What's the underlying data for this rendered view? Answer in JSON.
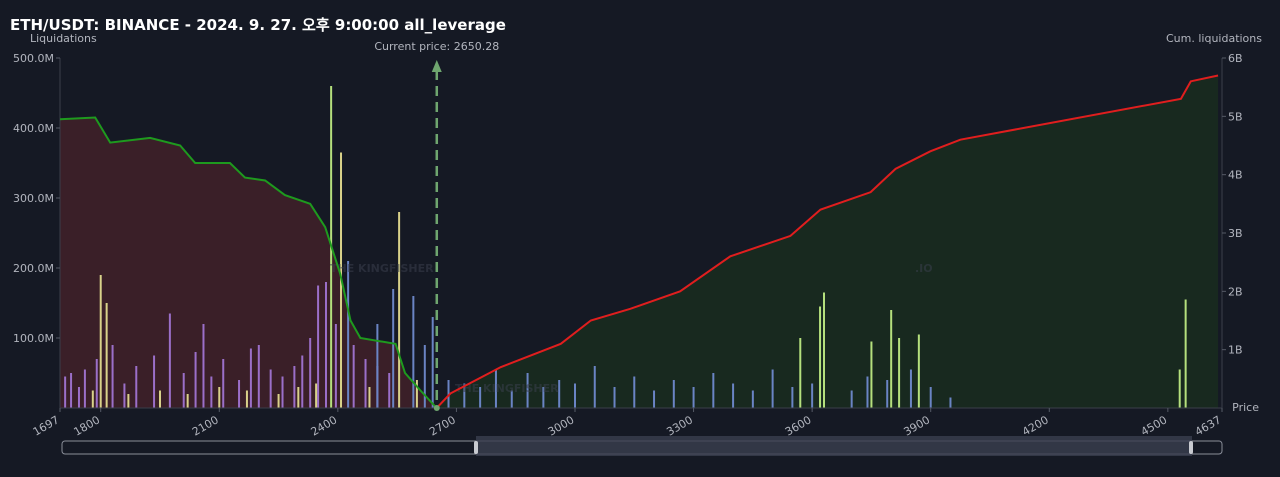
{
  "chart_data": {
    "type": "bar",
    "title": "ETH/USDT: BINANCE - 2024. 9. 27. 오후 9:00:00 all_leverage",
    "y_label": "Liquidations",
    "y2_label": "Cum. liquidations",
    "x_label": "Price",
    "watermark": "THE KINGFISHER",
    "watermark_suffix": ".IO",
    "current_price": {
      "value": 2650.28,
      "label": "Current price: 2650.28"
    },
    "xlim": [
      1697,
      4637
    ],
    "xticks": [
      1697,
      1800,
      2100,
      2400,
      2700,
      3000,
      3300,
      3600,
      3900,
      4200,
      4500,
      4637
    ],
    "ylim": [
      0,
      500
    ],
    "yticks": [
      {
        "value": 100,
        "label": "100.0M"
      },
      {
        "value": 200,
        "label": "200.0M"
      },
      {
        "value": 300,
        "label": "300.0M"
      },
      {
        "value": 400,
        "label": "400.0M"
      },
      {
        "value": 500,
        "label": "500.0M"
      }
    ],
    "y2lim": [
      0,
      6
    ],
    "y2ticks": [
      {
        "value": 1,
        "label": "1B"
      },
      {
        "value": 2,
        "label": "2B"
      },
      {
        "value": 3,
        "label": "3B"
      },
      {
        "value": 4,
        "label": "4B"
      },
      {
        "value": 5,
        "label": "5B"
      },
      {
        "value": 6,
        "label": "6B"
      }
    ],
    "series": [
      {
        "color": "#9b6fc9",
        "x": [
          1710,
          1725,
          1745,
          1760,
          1790,
          1830,
          1860,
          1890,
          1935,
          1975,
          2010,
          2040,
          2060,
          2080,
          2110,
          2150,
          2180,
          2200,
          2230,
          2260,
          2290,
          2310,
          2330,
          2350,
          2370,
          2395,
          2440,
          2470,
          2500,
          2530
        ],
        "values": [
          45,
          50,
          30,
          55,
          70,
          90,
          35,
          60,
          75,
          135,
          50,
          80,
          120,
          45,
          70,
          40,
          85,
          90,
          55,
          45,
          60,
          75,
          100,
          175,
          180,
          120,
          90,
          70,
          60,
          50
        ]
      },
      {
        "color": "#d9d28a",
        "x": [
          1780,
          1800,
          1815,
          1870,
          1950,
          2020,
          2100,
          2170,
          2250,
          2300,
          2345,
          2408,
          2480,
          2555,
          2600
        ],
        "values": [
          25,
          190,
          150,
          20,
          25,
          20,
          30,
          25,
          20,
          30,
          35,
          365,
          30,
          280,
          40
        ]
      },
      {
        "color": "#b5e07d",
        "x": [
          2383,
          3570,
          3620,
          3630,
          3750,
          3800,
          3820,
          3870,
          4530,
          4545
        ],
        "values": [
          460,
          100,
          145,
          165,
          95,
          140,
          100,
          105,
          55,
          155
        ]
      },
      {
        "color": "#6a84c4",
        "x": [
          2426,
          2500,
          2540,
          2591,
          2620,
          2640,
          2680,
          2720,
          2760,
          2800,
          2840,
          2880,
          2920,
          2960,
          3000,
          3050,
          3100,
          3150,
          3200,
          3250,
          3300,
          3350,
          3400,
          3450,
          3500,
          3550,
          3600,
          3700,
          3740,
          3790,
          3850,
          3900,
          3950
        ],
        "values": [
          210,
          120,
          170,
          160,
          90,
          130,
          40,
          35,
          30,
          55,
          25,
          50,
          30,
          40,
          35,
          60,
          30,
          45,
          25,
          40,
          30,
          50,
          35,
          25,
          55,
          30,
          35,
          25,
          45,
          40,
          55,
          30,
          15
        ]
      }
    ],
    "cumulative": [
      {
        "color": "#1e9a1e",
        "fill": "#3a1f28",
        "axis": "y2",
        "x": [
          1697,
          1786,
          1824,
          1925,
          2001,
          2039,
          2127,
          2165,
          2216,
          2266,
          2330,
          2368,
          2406,
          2432,
          2457,
          2546,
          2570,
          2609,
          2650
        ],
        "values": [
          4.95,
          4.98,
          4.55,
          4.63,
          4.5,
          4.2,
          4.2,
          3.95,
          3.9,
          3.65,
          3.5,
          3.1,
          2.3,
          1.5,
          1.2,
          1.1,
          0.6,
          0.3,
          0
        ]
      },
      {
        "color": "#e01e1e",
        "fill": "#18291f",
        "axis": "y2",
        "x": [
          2650,
          2685,
          2812,
          2964,
          3040,
          3140,
          3266,
          3393,
          3545,
          3621,
          3748,
          3811,
          3899,
          3975,
          4533,
          4558,
          4627
        ],
        "values": [
          0,
          0.25,
          0.7,
          1.1,
          1.5,
          1.7,
          2.0,
          2.6,
          2.95,
          3.4,
          3.7,
          4.1,
          4.4,
          4.6,
          5.3,
          5.6,
          5.7
        ]
      }
    ]
  }
}
